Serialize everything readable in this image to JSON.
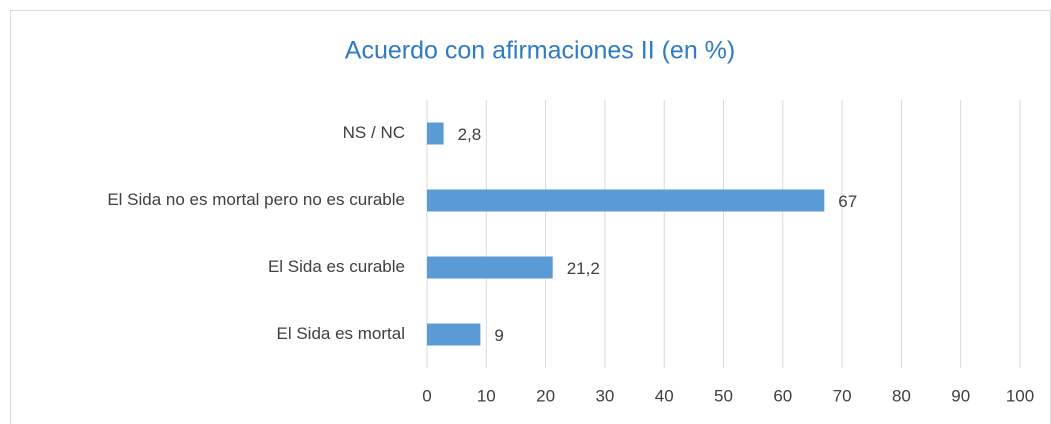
{
  "chart_data": {
    "type": "barh",
    "title": "Acuerdo con afirmaciones II (en %)",
    "categories": [
      "NS / NC",
      "El Sida no es mortal pero no es curable",
      "El Sida es curable",
      "El Sida es mortal"
    ],
    "values": [
      2.8,
      67,
      21.2,
      9
    ],
    "value_labels": [
      "2,8",
      "67",
      "21,2",
      "9"
    ],
    "color": "#5b9bd5",
    "xlim": [
      0,
      100
    ],
    "xticks": [
      0,
      10,
      20,
      30,
      40,
      50,
      60,
      70,
      80,
      90,
      100
    ],
    "grid": true
  }
}
